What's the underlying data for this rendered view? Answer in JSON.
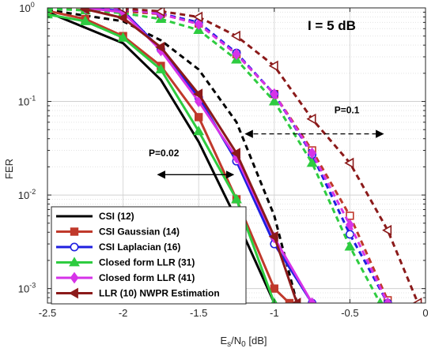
{
  "chart_data": {
    "type": "line",
    "title": "",
    "xlabel": "E",
    "xlabel_sub": "s",
    "xlabel_mid": "/N",
    "xlabel_sub2": "0",
    "xlabel_unit": " [dB]",
    "ylabel": "FER",
    "xlim": [
      -2.5,
      0
    ],
    "ylim": [
      0.0007,
      1
    ],
    "yscale": "log",
    "grid": true,
    "x_ticks": [
      -2.5,
      -2,
      -1.5,
      -1,
      -0.5,
      0
    ],
    "x_tick_labels": [
      "-2.5",
      "-2",
      "-1.5",
      "-1",
      "-0.5",
      "0"
    ],
    "y_tick_labels": [
      {
        "value": 1,
        "base": "10",
        "exp": "0"
      },
      {
        "value": 0.1,
        "base": "10",
        "exp": "-1"
      },
      {
        "value": 0.01,
        "base": "10",
        "exp": "-2"
      },
      {
        "value": 0.001,
        "base": "10",
        "exp": "-3"
      }
    ],
    "legend_position": "bottom-left",
    "series": [
      {
        "name": "CSI (12)",
        "color": "#000000",
        "marker": "none",
        "marker_fill": false,
        "style": "solid",
        "x": [
          -2.5,
          -2.0,
          -1.75,
          -1.5,
          -1.25,
          -1.0
        ],
        "y": [
          0.9,
          0.42,
          0.17,
          0.037,
          0.0055,
          0.0007
        ]
      },
      {
        "name": "",
        "color": "#000000",
        "marker": "none",
        "marker_fill": false,
        "style": "dashed",
        "x": [
          -2.5,
          -2.0,
          -1.75,
          -1.5,
          -1.25,
          -1.0,
          -0.85
        ],
        "y": [
          0.95,
          0.72,
          0.45,
          0.22,
          0.06,
          0.006,
          0.0007
        ]
      },
      {
        "name": "CSI Gaussian (14)",
        "color": "#c0392b",
        "marker": "square",
        "marker_fill": true,
        "style": "solid",
        "x": [
          -2.5,
          -2.25,
          -2.0,
          -1.75,
          -1.5,
          -1.25,
          -1.0,
          -0.9
        ],
        "y": [
          0.93,
          0.76,
          0.5,
          0.24,
          0.068,
          0.009,
          0.001,
          0.0007
        ]
      },
      {
        "name": "",
        "color": "#c0392b",
        "marker": "square",
        "marker_fill": false,
        "style": "dashed",
        "x": [
          -2.5,
          -2.25,
          -2.0,
          -1.75,
          -1.5,
          -1.25,
          -1.0,
          -0.75,
          -0.5,
          -0.25
        ],
        "y": [
          0.98,
          0.95,
          0.92,
          0.86,
          0.68,
          0.32,
          0.12,
          0.03,
          0.006,
          0.00075
        ]
      },
      {
        "name": "CSI Laplacian (16)",
        "color": "#1f1fe0",
        "marker": "circle",
        "marker_fill": false,
        "style": "solid",
        "x": [
          -2.25,
          -2.0,
          -1.75,
          -1.5,
          -1.25,
          -1.0,
          -0.75
        ],
        "y": [
          1.0,
          0.93,
          0.36,
          0.11,
          0.023,
          0.003,
          0.0007
        ]
      },
      {
        "name": "",
        "color": "#1f1fe0",
        "marker": "circle",
        "marker_fill": false,
        "style": "dashed",
        "x": [
          -2.25,
          -2.0,
          -1.75,
          -1.5,
          -1.25,
          -1.0,
          -0.75,
          -0.5,
          -0.25
        ],
        "y": [
          1.0,
          0.97,
          0.87,
          0.7,
          0.33,
          0.12,
          0.027,
          0.0038,
          0.0007
        ]
      },
      {
        "name": "Closed form LLR (31)",
        "color": "#2ecc40",
        "marker": "triangle",
        "marker_fill": true,
        "style": "solid",
        "x": [
          -2.5,
          -2.25,
          -2.0,
          -1.75,
          -1.5,
          -1.25,
          -1.0
        ],
        "y": [
          0.85,
          0.72,
          0.48,
          0.22,
          0.048,
          0.009,
          0.0007
        ]
      },
      {
        "name": "",
        "color": "#2ecc40",
        "marker": "triangle",
        "marker_fill": true,
        "style": "dashed",
        "x": [
          -2.5,
          -2.25,
          -2.0,
          -1.75,
          -1.5,
          -1.25,
          -1.0,
          -0.75,
          -0.5,
          -0.3
        ],
        "y": [
          0.98,
          0.94,
          0.88,
          0.76,
          0.58,
          0.28,
          0.1,
          0.022,
          0.0028,
          0.0007
        ]
      },
      {
        "name": "Closed form LLR (41)",
        "color": "#d633e8",
        "marker": "diamond",
        "marker_fill": true,
        "style": "solid",
        "x": [
          -2.25,
          -2.0,
          -1.75,
          -1.5,
          -1.25,
          -1.0,
          -0.75
        ],
        "y": [
          1.0,
          0.9,
          0.35,
          0.1,
          0.025,
          0.0035,
          0.0007
        ]
      },
      {
        "name": "",
        "color": "#d633e8",
        "marker": "diamond",
        "marker_fill": true,
        "style": "dashed",
        "x": [
          -2.25,
          -2.0,
          -1.75,
          -1.5,
          -1.25,
          -1.0,
          -0.75,
          -0.5,
          -0.25
        ],
        "y": [
          1.0,
          0.98,
          0.86,
          0.67,
          0.32,
          0.12,
          0.028,
          0.0048,
          0.0007
        ]
      },
      {
        "name": "LLR (10) NWPR Estimation",
        "color": "#8b1a1a",
        "marker": "triangle-left",
        "marker_fill": true,
        "style": "solid",
        "x": [
          -2.25,
          -2.0,
          -1.75,
          -1.5,
          -1.25,
          -1.0,
          -0.85
        ],
        "y": [
          0.97,
          0.78,
          0.38,
          0.12,
          0.028,
          0.0036,
          0.0007
        ]
      },
      {
        "name": "",
        "color": "#8b1a1a",
        "marker": "triangle-left",
        "marker_fill": false,
        "style": "dashed",
        "x": [
          -2.0,
          -1.75,
          -1.5,
          -1.25,
          -1.0,
          -0.75,
          -0.5,
          -0.25,
          -0.05
        ],
        "y": [
          0.98,
          0.92,
          0.8,
          0.5,
          0.24,
          0.065,
          0.022,
          0.0042,
          0.0007
        ]
      }
    ],
    "annotations": [
      {
        "text": "I = 5 dB",
        "at": [
          -0.62,
          0.58
        ],
        "size": "large"
      },
      {
        "text": "P=0.1",
        "at": [
          -0.52,
          0.075
        ],
        "arrow": {
          "from": [
            -1.19,
            0.045
          ],
          "to": [
            -0.28,
            0.045
          ],
          "style": "dashed"
        }
      },
      {
        "text": "P=0.02",
        "at": [
          -1.73,
          0.026
        ],
        "arrow": {
          "from": [
            -1.77,
            0.0165
          ],
          "to": [
            -1.27,
            0.0165
          ],
          "style": "solid"
        }
      }
    ]
  }
}
